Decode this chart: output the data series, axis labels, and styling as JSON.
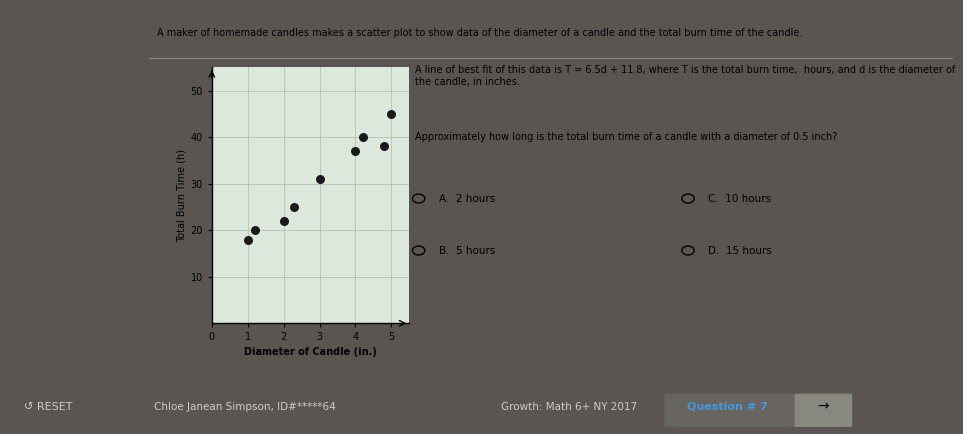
{
  "title": "A maker of homemade candles makes a scatter plot to show data of the diameter of a candle and the total burn time of the candle.",
  "scatter_x": [
    1.0,
    1.2,
    2.0,
    2.3,
    3.0,
    4.0,
    4.2,
    4.8,
    5.0
  ],
  "scatter_y": [
    18,
    20,
    22,
    25,
    31,
    37,
    40,
    38,
    45
  ],
  "xlabel": "Diameter of Candle (in.)",
  "ylabel": "Total Burn Time (h)",
  "xlim": [
    0,
    5.5
  ],
  "ylim": [
    0,
    55
  ],
  "xticks": [
    0,
    1,
    2,
    3,
    4,
    5
  ],
  "yticks": [
    10,
    20,
    30,
    40,
    50
  ],
  "dot_color": "#1a1a1a",
  "dot_size": 30,
  "chart_bg": "#dde8dd",
  "content_bg": "#dde0d8",
  "outer_bg": "#5a5550",
  "footer_bg": "#3a3530",
  "question_text1": "A line of best fit of this data is T = 6.5d + 11.8, where T is the total burn time, in",
  "question_text2": "hours, and d is the diameter of the candle, in inches.",
  "question2_text": "Approximately how long is the total burn time of a candle with a diameter of 0.5 inch?",
  "choice_A": "A.  2 hours",
  "choice_B": "B.  5 hours",
  "choice_C": "C.  10 hours",
  "choice_D": "D.  15 hours",
  "footer_reset": "RESET",
  "footer_name": "Chloe Janean Simpson, ID#*****64",
  "footer_course": "Growth: Math 6+ NY 2017",
  "footer_question": "Question # 7",
  "grid_color": "#aabcaa",
  "separator_color": "#888880",
  "white_panel": "#f0ede8"
}
